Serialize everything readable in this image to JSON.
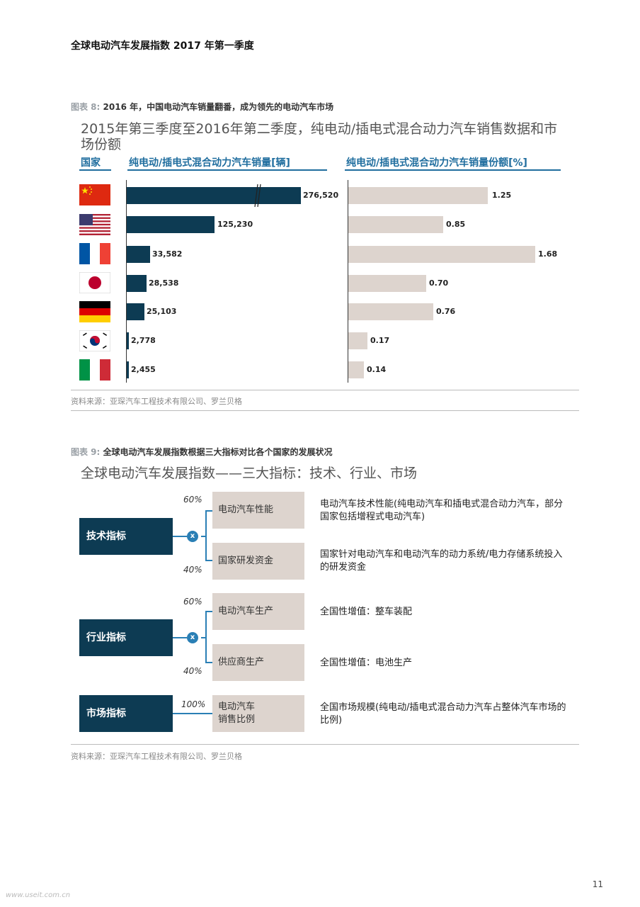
{
  "header": {
    "title": "全球电动汽车发展指数 2017 年第一季度"
  },
  "figure8": {
    "caption_label": "图表 8:",
    "caption_text": "2016 年，中国电动汽车销量翻番，成为领先的电动汽车市场",
    "subtitle": "2015年第三季度至2016年第二季度，纯电动/插电式混合动力汽车销售数据和市场份额",
    "col_country": "国家",
    "col_sales": "纯电动/插电式混合动力汽车销量[辆]",
    "col_share": "纯电动/插电式混合动力汽车销量份额[%]",
    "source": "资料来源：亚琛汽车工程技术有限公司、罗兰贝格"
  },
  "chart_data": {
    "type": "bar",
    "categories": [
      "China",
      "USA",
      "France",
      "Japan",
      "Germany",
      "South Korea",
      "Italy"
    ],
    "series": [
      {
        "values": [
          276520,
          125230,
          33582,
          28538,
          25103,
          2778,
          2455
        ],
        "labels": [
          "276,520",
          "125,230",
          "33,582",
          "28,538",
          "25,103",
          "2,778",
          "2,455"
        ]
      },
      {
        "values": [
          1.25,
          0.85,
          1.68,
          0.7,
          0.76,
          0.17,
          0.14
        ],
        "labels": [
          "1.25",
          "0.85",
          "1.68",
          "0.70",
          "0.76",
          "0.17",
          "0.14"
        ]
      }
    ],
    "colors": {
      "sales": "#0d3b53",
      "share": "#ddd4ce"
    }
  },
  "figure9": {
    "caption_label": "图表 9:",
    "caption_text": "全球电动汽车发展指数根据三大指标对比各个国家的发展状况",
    "subtitle": "全球电动汽车发展指数——三大指标：技术、行业、市场",
    "op": "x",
    "groups": [
      {
        "name": "技术指标",
        "items": [
          {
            "pct": "60%",
            "label": "电动汽车性能",
            "desc": "电动汽车技术性能(纯电动汽车和插电式混合动力汽车，部分国家包括增程式电动汽车)"
          },
          {
            "pct": "40%",
            "label": "国家研发资金",
            "desc": "国家针对电动汽车和电动汽车的动力系统/电力存储系统投入的研发资金"
          }
        ]
      },
      {
        "name": "行业指标",
        "items": [
          {
            "pct": "60%",
            "label": "电动汽车生产",
            "desc": "全国性增值：整车装配"
          },
          {
            "pct": "40%",
            "label": "供应商生产",
            "desc": "全国性增值：电池生产"
          }
        ]
      },
      {
        "name": "市场指标",
        "items": [
          {
            "pct": "100%",
            "label_line1": "电动汽车",
            "label_line2": "销售比例",
            "desc": "全国市场规模(纯电动/插电式混合动力汽车占整体汽车市场的比例)"
          }
        ]
      }
    ],
    "source": "资料来源：亚琛汽车工程技术有限公司、罗兰贝格"
  },
  "footer": {
    "page_number": "11",
    "watermark": "www.useit.com.cn"
  }
}
